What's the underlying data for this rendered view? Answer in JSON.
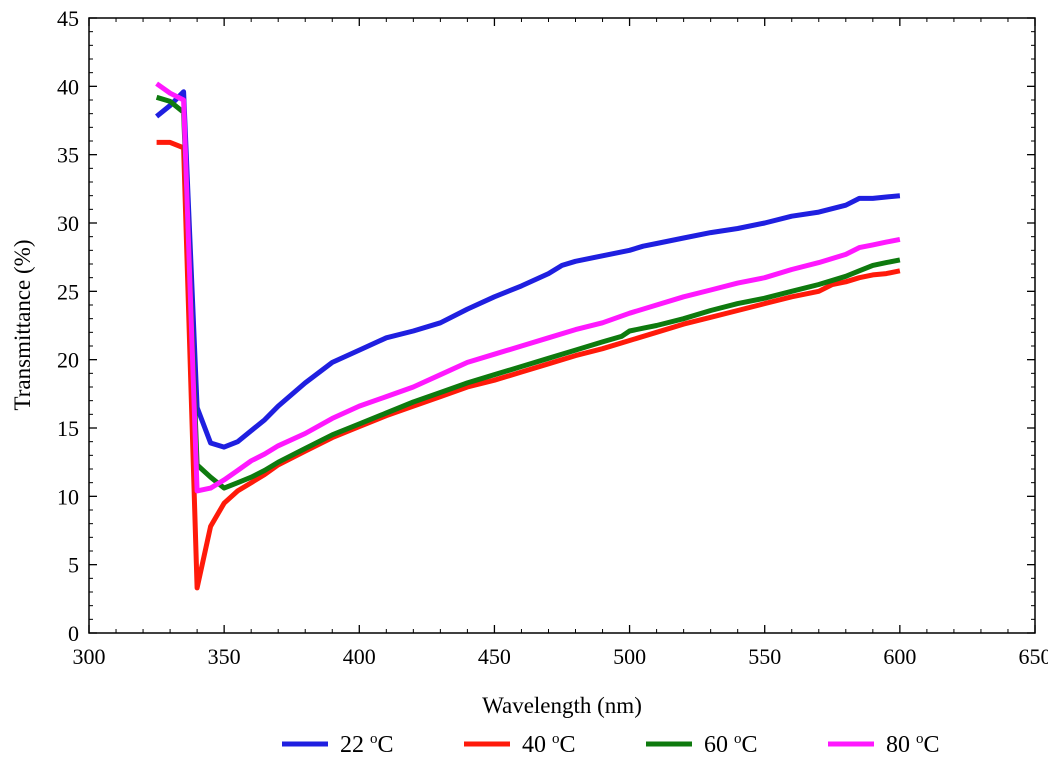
{
  "chart_data": {
    "type": "line",
    "xlabel": "Wavelength (nm)",
    "ylabel": "Transmittance (%)",
    "xlim": [
      300,
      650
    ],
    "ylim": [
      0,
      45
    ],
    "xticks": [
      300,
      350,
      400,
      450,
      500,
      550,
      600,
      650
    ],
    "yticks": [
      0,
      5,
      10,
      15,
      20,
      25,
      30,
      35,
      40,
      45
    ],
    "grid": false,
    "legend_position": "bottom",
    "series": [
      {
        "name": "22 °C",
        "temp": "22",
        "unit": "C",
        "color": "#1f1fe0",
        "x": [
          325,
          330,
          335,
          340,
          345,
          350,
          355,
          360,
          365,
          370,
          380,
          390,
          400,
          410,
          420,
          430,
          440,
          450,
          460,
          470,
          475,
          480,
          490,
          500,
          505,
          510,
          520,
          530,
          540,
          550,
          560,
          570,
          580,
          585,
          590,
          595,
          600
        ],
        "y": [
          37.8,
          38.6,
          39.6,
          16.5,
          13.9,
          13.6,
          14.0,
          14.8,
          15.6,
          16.6,
          18.3,
          19.8,
          20.7,
          21.6,
          22.1,
          22.7,
          23.7,
          24.6,
          25.4,
          26.3,
          26.9,
          27.2,
          27.6,
          28.0,
          28.3,
          28.5,
          28.9,
          29.3,
          29.6,
          30.0,
          30.5,
          30.8,
          31.3,
          31.8,
          31.8,
          31.9,
          32.0
        ]
      },
      {
        "name": "40 °C",
        "temp": "40",
        "unit": "C",
        "color": "#ff1a0a",
        "x": [
          325,
          330,
          335,
          340,
          345,
          350,
          355,
          360,
          365,
          370,
          380,
          390,
          400,
          410,
          420,
          430,
          440,
          450,
          460,
          470,
          480,
          490,
          500,
          510,
          520,
          530,
          540,
          550,
          560,
          570,
          575,
          580,
          585,
          590,
          595,
          600
        ],
        "y": [
          35.9,
          35.9,
          35.5,
          3.3,
          7.8,
          9.5,
          10.4,
          11.0,
          11.6,
          12.3,
          13.3,
          14.3,
          15.1,
          15.9,
          16.6,
          17.3,
          18.0,
          18.5,
          19.1,
          19.7,
          20.3,
          20.8,
          21.4,
          22.0,
          22.6,
          23.1,
          23.6,
          24.1,
          24.6,
          25.0,
          25.5,
          25.7,
          26.0,
          26.2,
          26.3,
          26.5
        ]
      },
      {
        "name": "60 °C",
        "temp": "60",
        "unit": "C",
        "color": "#0e7a0e",
        "x": [
          325,
          330,
          335,
          340,
          345,
          350,
          355,
          360,
          365,
          370,
          380,
          390,
          400,
          410,
          420,
          430,
          440,
          450,
          460,
          470,
          480,
          490,
          497,
          500,
          505,
          510,
          520,
          530,
          540,
          550,
          560,
          570,
          580,
          585,
          590,
          595,
          600
        ],
        "y": [
          39.2,
          38.9,
          38.1,
          12.3,
          11.4,
          10.6,
          11.0,
          11.4,
          11.9,
          12.5,
          13.5,
          14.5,
          15.3,
          16.1,
          16.9,
          17.6,
          18.3,
          18.9,
          19.5,
          20.1,
          20.7,
          21.3,
          21.7,
          22.1,
          22.3,
          22.5,
          23.0,
          23.6,
          24.1,
          24.5,
          25.0,
          25.5,
          26.1,
          26.5,
          26.9,
          27.1,
          27.3
        ]
      },
      {
        "name": "80 °C",
        "temp": "80",
        "unit": "C",
        "color": "#ff18ff",
        "x": [
          325,
          330,
          335,
          340,
          345,
          350,
          355,
          360,
          365,
          370,
          380,
          390,
          400,
          410,
          420,
          430,
          440,
          450,
          460,
          470,
          480,
          490,
          500,
          510,
          520,
          530,
          540,
          550,
          560,
          570,
          580,
          585,
          590,
          595,
          600
        ],
        "y": [
          40.2,
          39.5,
          39.0,
          10.4,
          10.6,
          11.2,
          11.9,
          12.6,
          13.1,
          13.7,
          14.6,
          15.7,
          16.6,
          17.3,
          18.0,
          18.9,
          19.8,
          20.4,
          21.0,
          21.6,
          22.2,
          22.7,
          23.4,
          24.0,
          24.6,
          25.1,
          25.6,
          26.0,
          26.6,
          27.1,
          27.7,
          28.2,
          28.4,
          28.6,
          28.8
        ]
      }
    ]
  }
}
